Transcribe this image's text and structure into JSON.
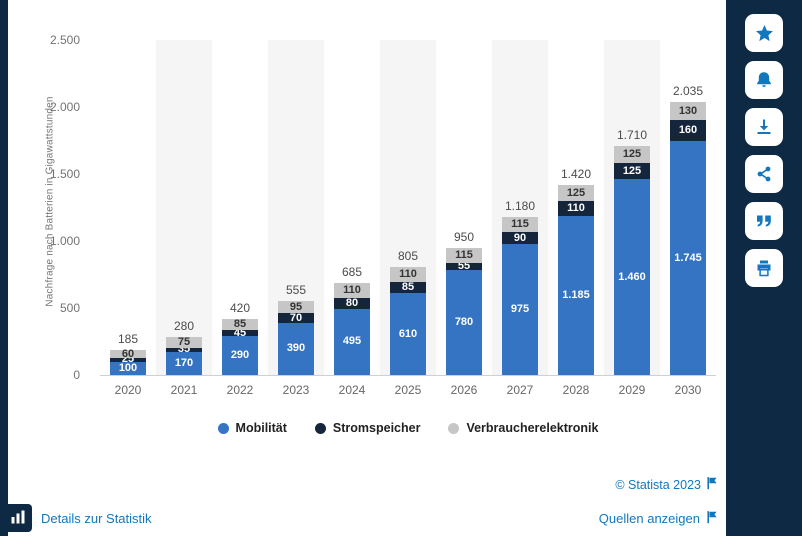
{
  "chart_data": {
    "type": "bar",
    "stacked": true,
    "categories": [
      "2020",
      "2021",
      "2022",
      "2023",
      "2024",
      "2025",
      "2026",
      "2027",
      "2028",
      "2029",
      "2030"
    ],
    "series": [
      {
        "name": "Mobilität",
        "color": "#3474c2",
        "label_color": "#ffffff",
        "values": [
          100,
          170,
          290,
          390,
          495,
          610,
          780,
          975,
          1185,
          1460,
          1745
        ],
        "labels": [
          "100",
          "170",
          "290",
          "390",
          "495",
          "610",
          "780",
          "975",
          "1.185",
          "1.460",
          "1.745"
        ]
      },
      {
        "name": "Stromspeicher",
        "color": "#15263c",
        "label_color": "#ffffff",
        "values": [
          25,
          35,
          45,
          70,
          80,
          85,
          55,
          90,
          110,
          125,
          160
        ],
        "labels": [
          "25",
          "35",
          "45",
          "70",
          "80",
          "85",
          "55",
          "90",
          "110",
          "125",
          "160"
        ]
      },
      {
        "name": "Verbraucherelektronik",
        "color": "#c6c6c6",
        "label_color": "#333333",
        "values": [
          60,
          75,
          85,
          95,
          110,
          110,
          115,
          115,
          125,
          125,
          130
        ],
        "labels": [
          "60",
          "75",
          "85",
          "95",
          "110",
          "110",
          "115",
          "115",
          "125",
          "125",
          "130"
        ]
      }
    ],
    "totals": {
      "values": [
        185,
        280,
        420,
        555,
        685,
        805,
        950,
        1180,
        1420,
        1710,
        2035
      ],
      "labels": [
        "185",
        "280",
        "420",
        "555",
        "685",
        "805",
        "950",
        "1.180",
        "1.420",
        "1.710",
        "2.035"
      ]
    },
    "title": "",
    "xlabel": "",
    "ylabel": "Nachfrage nach Batterien in Gigawattstunden",
    "ylim": [
      0,
      2500
    ],
    "yticks": [
      {
        "value": 0,
        "label": "0"
      },
      {
        "value": 500,
        "label": "500"
      },
      {
        "value": 1000,
        "label": "1.000"
      },
      {
        "value": 1500,
        "label": "1.500"
      },
      {
        "value": 2000,
        "label": "2.000"
      },
      {
        "value": 2500,
        "label": "2.500"
      }
    ],
    "grid": false,
    "legend_position": "bottom"
  },
  "sidebar": {
    "buttons": [
      {
        "name": "favorite",
        "icon": "star-icon"
      },
      {
        "name": "notification",
        "icon": "bell-icon"
      },
      {
        "name": "download",
        "icon": "download-icon"
      },
      {
        "name": "share",
        "icon": "share-icon"
      },
      {
        "name": "cite",
        "icon": "quote-icon"
      },
      {
        "name": "print",
        "icon": "printer-icon"
      }
    ]
  },
  "footer": {
    "copyright": "© Statista 2023",
    "details_label": "Details zur Statistik",
    "sources_label": "Quellen anzeigen"
  },
  "colors": {
    "accent_blue": "#1377bd",
    "sidebar_navy": "#0e2944",
    "band_gray": "#f5f5f5"
  }
}
